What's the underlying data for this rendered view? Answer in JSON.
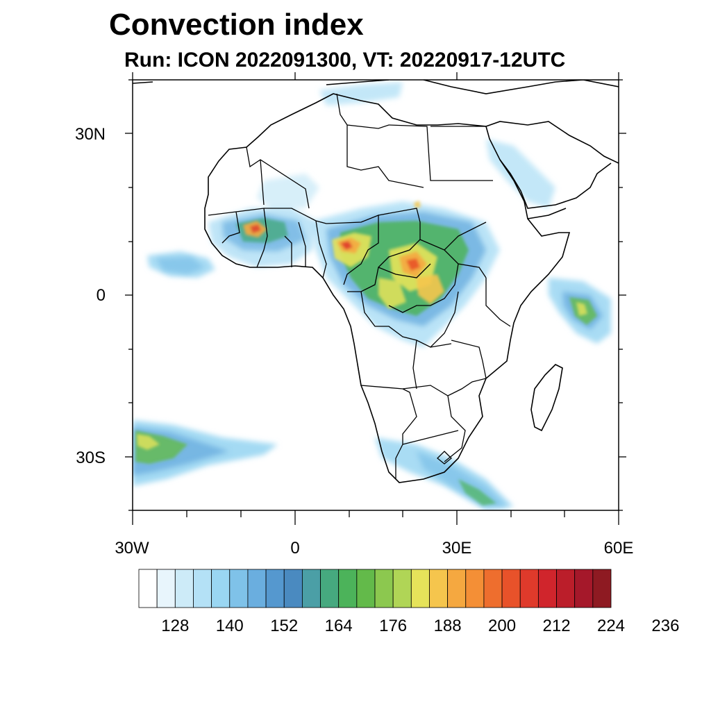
{
  "title": "Convection index",
  "subtitle": "Run: ICON 2022091300,  VT: 20220917-12UTC",
  "axes": {
    "lat_labels": [
      "30N",
      "0",
      "30S"
    ],
    "lon_labels": [
      "30W",
      "0",
      "30E",
      "60E"
    ],
    "lat_range": [
      -40,
      40
    ],
    "lon_range": [
      -30,
      60
    ]
  },
  "colorbar": {
    "colors": [
      "#ffffff",
      "#e8f5fc",
      "#cdebf8",
      "#b4e1f6",
      "#9ad6f2",
      "#7fc2e9",
      "#6aaedf",
      "#5598cf",
      "#4a8ac0",
      "#4b9fa6",
      "#46a97f",
      "#4cb35a",
      "#63ba4a",
      "#8cc84f",
      "#b0d556",
      "#e6e35a",
      "#f5c54d",
      "#f5a840",
      "#f48f36",
      "#ee6e2e",
      "#e8522a",
      "#df3a2b",
      "#d0252c",
      "#bb1e2a",
      "#a5182a",
      "#8e1a22"
    ],
    "labels": [
      "128",
      "140",
      "152",
      "164",
      "176",
      "188",
      "200",
      "212",
      "224",
      "236"
    ]
  }
}
